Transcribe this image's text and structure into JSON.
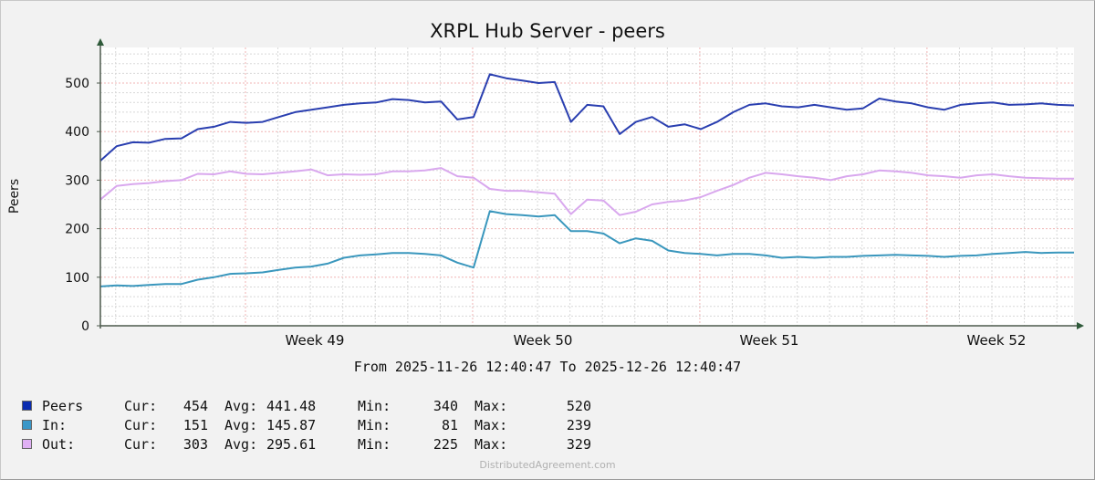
{
  "title": "XRPL Hub Server - peers",
  "y_axis_label": "Peers",
  "range_text": "From 2025-11-26 12:40:47 To 2025-12-26 12:40:47",
  "watermark": "DistributedAgreement.com",
  "colors": {
    "background": "#f2f2f2",
    "plot_background": "#ffffff",
    "peers": "#2a3fb0",
    "in": "#3a97bd",
    "out": "#d9a8ee",
    "axis": "#4a5a4a",
    "major_grid": "#f0b8b8",
    "minor_grid": "#dddddd"
  },
  "legend": [
    {
      "name": "Peers",
      "label": "Peers",
      "color": "#0a2cb0",
      "cur_label": "Cur:",
      "cur": "454",
      "avg_label": "Avg:",
      "avg": "441.48",
      "min_label": "Min:",
      "min": "340",
      "max_label": "Max:",
      "max": "520"
    },
    {
      "name": "In",
      "label": "In:",
      "color": "#3a97c8",
      "cur_label": "Cur:",
      "cur": "151",
      "avg_label": "Avg:",
      "avg": "145.87",
      "min_label": "Min:",
      "min": "81",
      "max_label": "Max:",
      "max": "239"
    },
    {
      "name": "Out",
      "label": "Out:",
      "color": "#e0b0f4",
      "cur_label": "Cur:",
      "cur": "303",
      "avg_label": "Avg:",
      "avg": "295.61",
      "min_label": "Min:",
      "min": "225",
      "max_label": "Max:",
      "max": "329"
    }
  ],
  "chart_data": {
    "type": "line",
    "title": "XRPL Hub Server - peers",
    "xlabel": "From 2025-11-26 12:40:47 To 2025-12-26 12:40:47",
    "ylabel": "Peers",
    "ylim": [
      0,
      570
    ],
    "yticks": [
      0,
      100,
      200,
      300,
      400,
      500
    ],
    "xtick_labels": [
      "Week 49",
      "Week 50",
      "Week 51",
      "Week 52"
    ],
    "grid": true,
    "legend_position": "bottom",
    "x_unit": "day offset from 2025-11-26 12:40:47",
    "x": [
      0,
      0.5,
      1,
      1.5,
      2,
      2.5,
      3,
      3.5,
      4,
      4.5,
      5,
      5.5,
      6,
      6.5,
      7,
      7.5,
      8,
      8.5,
      9,
      9.5,
      10,
      10.5,
      11,
      11.5,
      12,
      12.5,
      13,
      13.5,
      14,
      14.5,
      15,
      15.5,
      16,
      16.5,
      17,
      17.5,
      18,
      18.5,
      19,
      19.5,
      20,
      20.5,
      21,
      21.5,
      22,
      22.5,
      23,
      23.5,
      24,
      24.5,
      25,
      25.5,
      26,
      26.5,
      27,
      27.5,
      28,
      28.5,
      29,
      29.5,
      30
    ],
    "series": [
      {
        "name": "Peers",
        "color": "#2a3fb0",
        "values": [
          340,
          370,
          378,
          377,
          385,
          386,
          405,
          410,
          420,
          418,
          420,
          430,
          440,
          445,
          450,
          455,
          458,
          460,
          467,
          465,
          460,
          462,
          425,
          430,
          518,
          510,
          505,
          500,
          502,
          420,
          455,
          452,
          395,
          420,
          430,
          410,
          415,
          405,
          420,
          440,
          455,
          458,
          452,
          450,
          455,
          450,
          445,
          448,
          468,
          462,
          458,
          450,
          445,
          455,
          458,
          460,
          455,
          456,
          458,
          455,
          454
        ]
      },
      {
        "name": "In",
        "color": "#3a97bd",
        "values": [
          81,
          83,
          82,
          84,
          86,
          86,
          95,
          100,
          107,
          108,
          110,
          115,
          120,
          122,
          128,
          140,
          145,
          147,
          150,
          150,
          148,
          145,
          130,
          120,
          236,
          230,
          228,
          225,
          228,
          195,
          195,
          190,
          170,
          180,
          175,
          155,
          150,
          148,
          145,
          148,
          148,
          145,
          140,
          142,
          140,
          142,
          142,
          144,
          145,
          146,
          145,
          144,
          142,
          144,
          145,
          148,
          150,
          152,
          150,
          151,
          151
        ]
      },
      {
        "name": "Out",
        "color": "#d9a8ee",
        "values": [
          260,
          288,
          292,
          294,
          298,
          300,
          313,
          312,
          318,
          313,
          312,
          315,
          318,
          322,
          310,
          312,
          311,
          312,
          318,
          318,
          320,
          325,
          308,
          305,
          282,
          278,
          278,
          275,
          272,
          230,
          260,
          258,
          228,
          235,
          250,
          255,
          258,
          265,
          278,
          290,
          305,
          315,
          312,
          308,
          305,
          300,
          308,
          312,
          320,
          318,
          315,
          310,
          308,
          305,
          310,
          312,
          308,
          305,
          304,
          303,
          303
        ]
      }
    ]
  }
}
